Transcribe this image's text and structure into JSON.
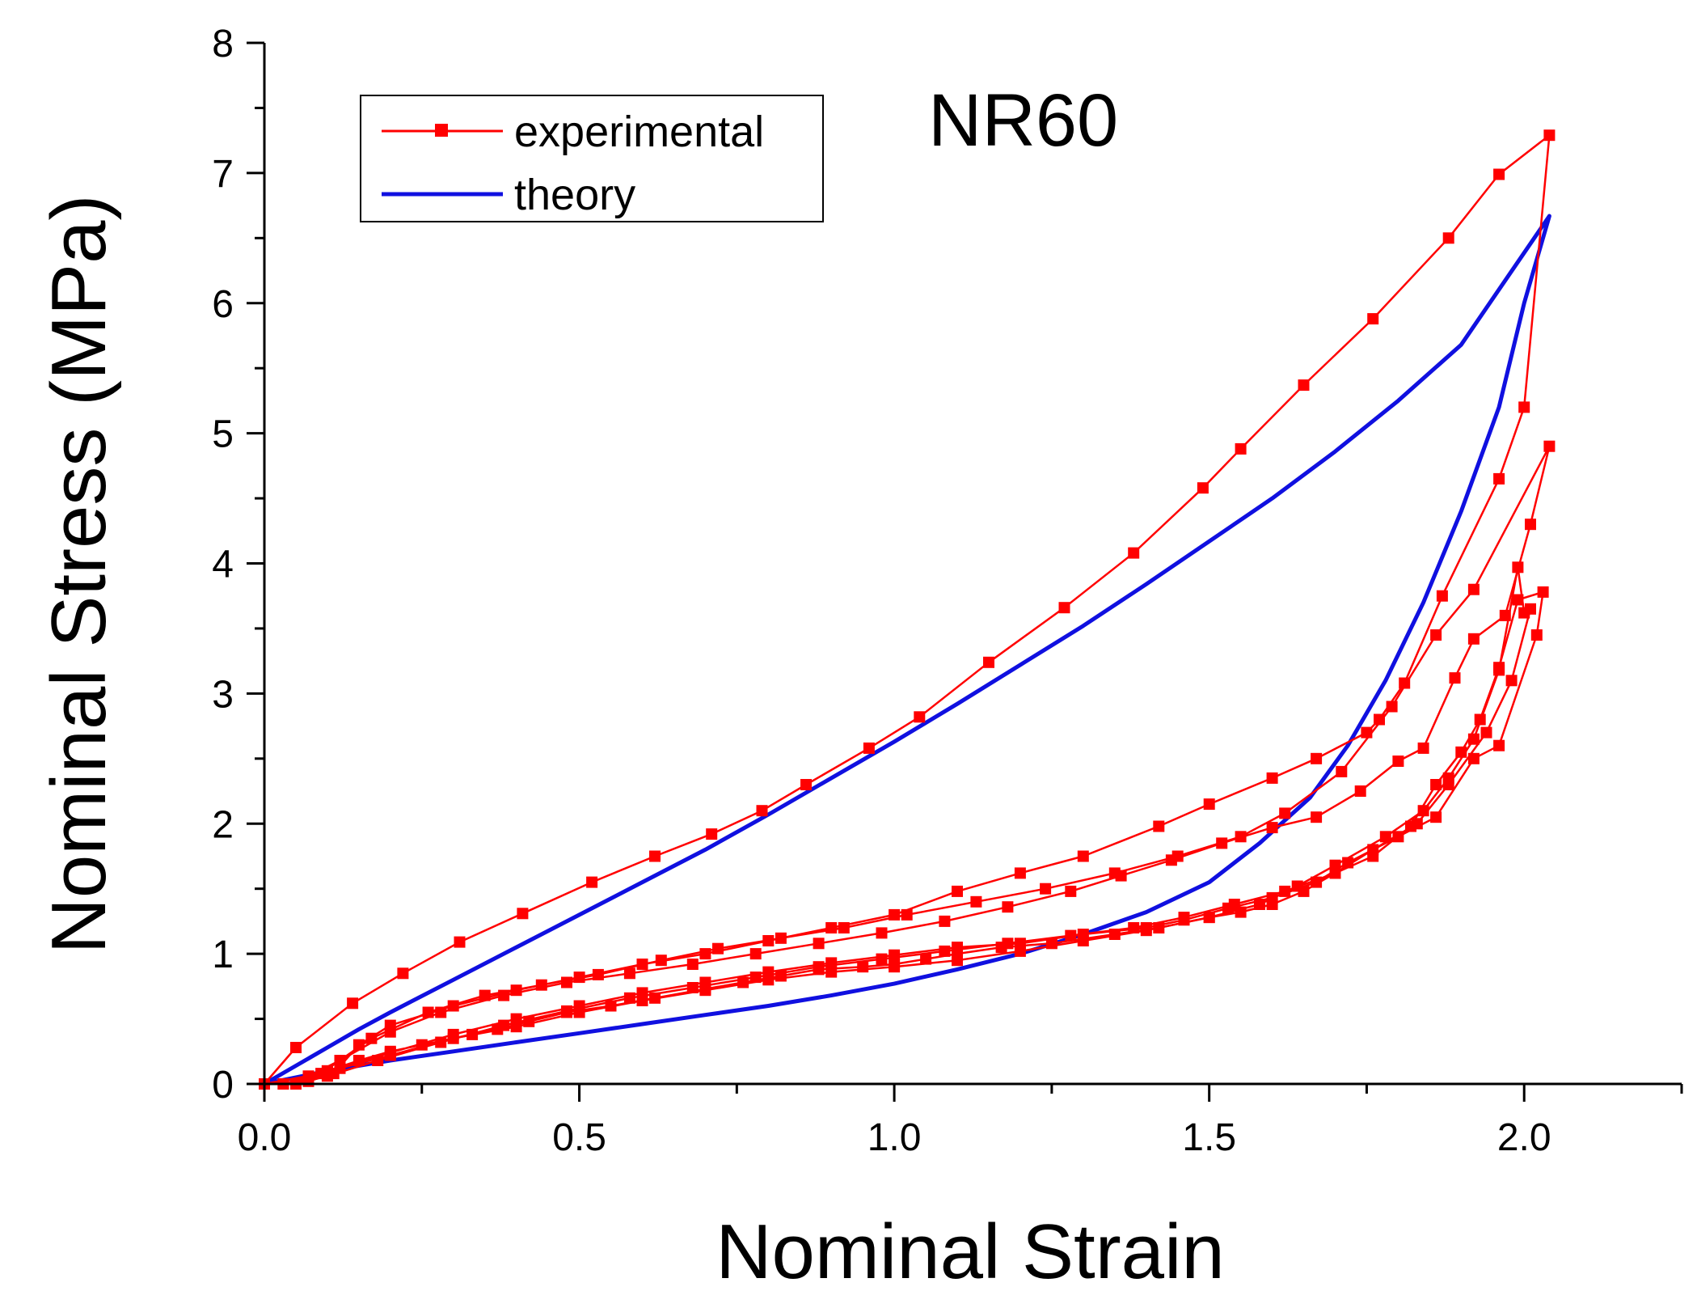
{
  "chart_data": {
    "type": "line",
    "title": "",
    "annotation": "NR60",
    "xlabel": "Nominal Strain",
    "ylabel": "Nominal Stress (MPa)",
    "xlim": [
      0,
      2.25
    ],
    "ylim": [
      0,
      8
    ],
    "xticks": [
      0.0,
      0.5,
      1.0,
      1.5,
      2.0
    ],
    "xtick_labels": [
      "0.0",
      "0.5",
      "1.0",
      "1.5",
      "2.0"
    ],
    "yticks": [
      0,
      1,
      2,
      3,
      4,
      5,
      6,
      7,
      8
    ],
    "ytick_labels": [
      "0",
      "1",
      "2",
      "3",
      "4",
      "5",
      "6",
      "7",
      "8"
    ],
    "grid": false,
    "legend_position": "top-left",
    "legend": [
      "experimental",
      "theory"
    ],
    "colors": {
      "experimental": "#ff0000",
      "theory": "#1010e0"
    },
    "series": [
      {
        "name": "experimental",
        "style": "line-square-markers",
        "loops": [
          [
            [
              0.0,
              0.0
            ],
            [
              0.05,
              0.28
            ],
            [
              0.14,
              0.62
            ],
            [
              0.22,
              0.85
            ],
            [
              0.31,
              1.09
            ],
            [
              0.41,
              1.31
            ],
            [
              0.52,
              1.55
            ],
            [
              0.62,
              1.75
            ],
            [
              0.71,
              1.92
            ],
            [
              0.79,
              2.1
            ],
            [
              0.86,
              2.3
            ],
            [
              0.96,
              2.58
            ],
            [
              1.04,
              2.82
            ],
            [
              1.15,
              3.24
            ],
            [
              1.27,
              3.66
            ],
            [
              1.38,
              4.08
            ],
            [
              1.49,
              4.58
            ],
            [
              1.55,
              4.88
            ],
            [
              1.65,
              5.37
            ],
            [
              1.76,
              5.88
            ],
            [
              1.88,
              6.5
            ],
            [
              1.96,
              6.99
            ],
            [
              2.04,
              7.29
            ],
            [
              2.0,
              5.2
            ],
            [
              1.96,
              4.65
            ],
            [
              1.87,
              3.75
            ],
            [
              1.81,
              3.08
            ],
            [
              1.77,
              2.8
            ],
            [
              1.75,
              2.7
            ],
            [
              1.67,
              2.5
            ],
            [
              1.6,
              2.35
            ],
            [
              1.5,
              2.15
            ],
            [
              1.42,
              1.98
            ],
            [
              1.3,
              1.75
            ],
            [
              1.2,
              1.62
            ],
            [
              1.1,
              1.48
            ],
            [
              1.0,
              1.3
            ],
            [
              0.9,
              1.2
            ],
            [
              0.8,
              1.1
            ],
            [
              0.7,
              1.0
            ],
            [
              0.6,
              0.92
            ],
            [
              0.5,
              0.82
            ],
            [
              0.4,
              0.72
            ],
            [
              0.3,
              0.6
            ],
            [
              0.2,
              0.45
            ],
            [
              0.15,
              0.3
            ],
            [
              0.11,
              0.08
            ],
            [
              0.07,
              0.02
            ],
            [
              0.0,
              0.0
            ]
          ],
          [
            [
              0.03,
              0.0
            ],
            [
              0.07,
              0.04
            ],
            [
              0.1,
              0.1
            ],
            [
              0.15,
              0.18
            ],
            [
              0.2,
              0.25
            ],
            [
              0.25,
              0.3
            ],
            [
              0.33,
              0.38
            ],
            [
              0.37,
              0.42
            ],
            [
              0.42,
              0.48
            ],
            [
              0.48,
              0.55
            ],
            [
              0.55,
              0.6
            ],
            [
              0.62,
              0.66
            ],
            [
              0.7,
              0.73
            ],
            [
              0.76,
              0.78
            ],
            [
              0.82,
              0.83
            ],
            [
              0.88,
              0.88
            ],
            [
              0.95,
              0.9
            ],
            [
              1.0,
              0.92
            ],
            [
              1.05,
              0.96
            ],
            [
              1.1,
              1.0
            ],
            [
              1.17,
              1.05
            ],
            [
              1.25,
              1.08
            ],
            [
              1.35,
              1.15
            ],
            [
              1.42,
              1.2
            ],
            [
              1.5,
              1.28
            ],
            [
              1.55,
              1.32
            ],
            [
              1.6,
              1.38
            ],
            [
              1.65,
              1.48
            ],
            [
              1.7,
              1.62
            ],
            [
              1.76,
              1.75
            ],
            [
              1.82,
              1.98
            ],
            [
              1.86,
              2.3
            ],
            [
              1.9,
              2.55
            ],
            [
              1.93,
              2.8
            ],
            [
              1.96,
              3.2
            ],
            [
              1.99,
              3.72
            ],
            [
              2.03,
              3.78
            ],
            [
              2.02,
              3.45
            ],
            [
              1.96,
              2.6
            ],
            [
              1.92,
              2.5
            ],
            [
              1.86,
              2.05
            ],
            [
              1.8,
              1.9
            ],
            [
              1.72,
              1.7
            ],
            [
              1.67,
              1.55
            ],
            [
              1.6,
              1.43
            ],
            [
              1.53,
              1.35
            ],
            [
              1.46,
              1.26
            ],
            [
              1.4,
              1.2
            ],
            [
              1.3,
              1.15
            ],
            [
              1.2,
              1.08
            ],
            [
              1.1,
              1.05
            ],
            [
              1.0,
              0.99
            ],
            [
              0.9,
              0.93
            ],
            [
              0.8,
              0.86
            ],
            [
              0.7,
              0.78
            ],
            [
              0.6,
              0.7
            ],
            [
              0.5,
              0.6
            ],
            [
              0.4,
              0.5
            ],
            [
              0.3,
              0.38
            ],
            [
              0.2,
              0.24
            ],
            [
              0.1,
              0.1
            ],
            [
              0.03,
              0.0
            ]
          ],
          [
            [
              0.0,
              0.0
            ],
            [
              0.09,
              0.08
            ],
            [
              0.17,
              0.35
            ],
            [
              0.26,
              0.55
            ],
            [
              0.35,
              0.68
            ],
            [
              0.44,
              0.76
            ],
            [
              0.53,
              0.84
            ],
            [
              0.63,
              0.95
            ],
            [
              0.72,
              1.04
            ],
            [
              0.82,
              1.12
            ],
            [
              0.92,
              1.2
            ],
            [
              1.02,
              1.3
            ],
            [
              1.13,
              1.4
            ],
            [
              1.24,
              1.5
            ],
            [
              1.35,
              1.62
            ],
            [
              1.45,
              1.75
            ],
            [
              1.55,
              1.9
            ],
            [
              1.62,
              2.08
            ],
            [
              1.71,
              2.4
            ],
            [
              1.79,
              2.9
            ],
            [
              1.86,
              3.45
            ],
            [
              1.92,
              3.8
            ],
            [
              2.04,
              4.9
            ],
            [
              2.01,
              4.3
            ],
            [
              1.97,
              3.6
            ],
            [
              1.92,
              3.42
            ],
            [
              1.89,
              3.12
            ],
            [
              1.84,
              2.58
            ],
            [
              1.8,
              2.48
            ],
            [
              1.74,
              2.25
            ],
            [
              1.67,
              2.05
            ],
            [
              1.6,
              1.97
            ],
            [
              1.52,
              1.85
            ],
            [
              1.44,
              1.72
            ],
            [
              1.36,
              1.6
            ],
            [
              1.28,
              1.48
            ],
            [
              1.18,
              1.36
            ],
            [
              1.08,
              1.25
            ],
            [
              0.98,
              1.16
            ],
            [
              0.88,
              1.08
            ],
            [
              0.78,
              1.0
            ],
            [
              0.68,
              0.92
            ],
            [
              0.58,
              0.85
            ],
            [
              0.48,
              0.78
            ],
            [
              0.38,
              0.68
            ],
            [
              0.28,
              0.55
            ],
            [
              0.2,
              0.4
            ],
            [
              0.12,
              0.18
            ],
            [
              0.07,
              0.06
            ],
            [
              0.0,
              0.0
            ]
          ],
          [
            [
              0.05,
              0.0
            ],
            [
              0.12,
              0.12
            ],
            [
              0.2,
              0.22
            ],
            [
              0.3,
              0.35
            ],
            [
              0.4,
              0.44
            ],
            [
              0.5,
              0.55
            ],
            [
              0.6,
              0.64
            ],
            [
              0.7,
              0.72
            ],
            [
              0.8,
              0.8
            ],
            [
              0.9,
              0.86
            ],
            [
              1.0,
              0.9
            ],
            [
              1.1,
              0.95
            ],
            [
              1.2,
              1.02
            ],
            [
              1.3,
              1.1
            ],
            [
              1.4,
              1.18
            ],
            [
              1.5,
              1.28
            ],
            [
              1.58,
              1.38
            ],
            [
              1.64,
              1.52
            ],
            [
              1.7,
              1.68
            ],
            [
              1.78,
              1.9
            ],
            [
              1.84,
              2.1
            ],
            [
              1.88,
              2.35
            ],
            [
              1.92,
              2.65
            ],
            [
              1.96,
              3.18
            ],
            [
              1.99,
              3.97
            ],
            [
              2.0,
              3.62
            ],
            [
              2.01,
              3.65
            ],
            [
              1.98,
              3.1
            ],
            [
              1.94,
              2.7
            ],
            [
              1.88,
              2.3
            ],
            [
              1.83,
              2.0
            ],
            [
              1.76,
              1.8
            ],
            [
              1.7,
              1.62
            ],
            [
              1.62,
              1.48
            ],
            [
              1.54,
              1.38
            ],
            [
              1.46,
              1.28
            ],
            [
              1.38,
              1.2
            ],
            [
              1.28,
              1.14
            ],
            [
              1.18,
              1.08
            ],
            [
              1.08,
              1.02
            ],
            [
              0.98,
              0.96
            ],
            [
              0.88,
              0.9
            ],
            [
              0.78,
              0.82
            ],
            [
              0.68,
              0.74
            ],
            [
              0.58,
              0.66
            ],
            [
              0.48,
              0.56
            ],
            [
              0.38,
              0.45
            ],
            [
              0.28,
              0.32
            ],
            [
              0.18,
              0.18
            ],
            [
              0.1,
              0.06
            ],
            [
              0.05,
              0.0
            ]
          ]
        ]
      },
      {
        "name": "theory",
        "style": "line",
        "points": [
          [
            0.0,
            0.0
          ],
          [
            0.05,
            0.14
          ],
          [
            0.1,
            0.28
          ],
          [
            0.15,
            0.42
          ],
          [
            0.2,
            0.55
          ],
          [
            0.3,
            0.8
          ],
          [
            0.4,
            1.05
          ],
          [
            0.5,
            1.3
          ],
          [
            0.6,
            1.55
          ],
          [
            0.7,
            1.8
          ],
          [
            0.8,
            2.07
          ],
          [
            0.9,
            2.35
          ],
          [
            1.0,
            2.63
          ],
          [
            1.1,
            2.92
          ],
          [
            1.2,
            3.22
          ],
          [
            1.3,
            3.52
          ],
          [
            1.4,
            3.84
          ],
          [
            1.5,
            4.17
          ],
          [
            1.6,
            4.5
          ],
          [
            1.7,
            4.86
          ],
          [
            1.8,
            5.25
          ],
          [
            1.9,
            5.68
          ],
          [
            2.04,
            6.67
          ],
          [
            2.0,
            6.0
          ],
          [
            1.96,
            5.2
          ],
          [
            1.9,
            4.4
          ],
          [
            1.84,
            3.7
          ],
          [
            1.78,
            3.1
          ],
          [
            1.72,
            2.6
          ],
          [
            1.66,
            2.2
          ],
          [
            1.58,
            1.85
          ],
          [
            1.5,
            1.55
          ],
          [
            1.4,
            1.32
          ],
          [
            1.3,
            1.15
          ],
          [
            1.2,
            1.0
          ],
          [
            1.1,
            0.88
          ],
          [
            1.0,
            0.77
          ],
          [
            0.9,
            0.68
          ],
          [
            0.8,
            0.6
          ],
          [
            0.7,
            0.53
          ],
          [
            0.6,
            0.46
          ],
          [
            0.5,
            0.39
          ],
          [
            0.4,
            0.32
          ],
          [
            0.3,
            0.25
          ],
          [
            0.2,
            0.18
          ],
          [
            0.1,
            0.1
          ],
          [
            0.0,
            0.0
          ]
        ]
      }
    ]
  }
}
